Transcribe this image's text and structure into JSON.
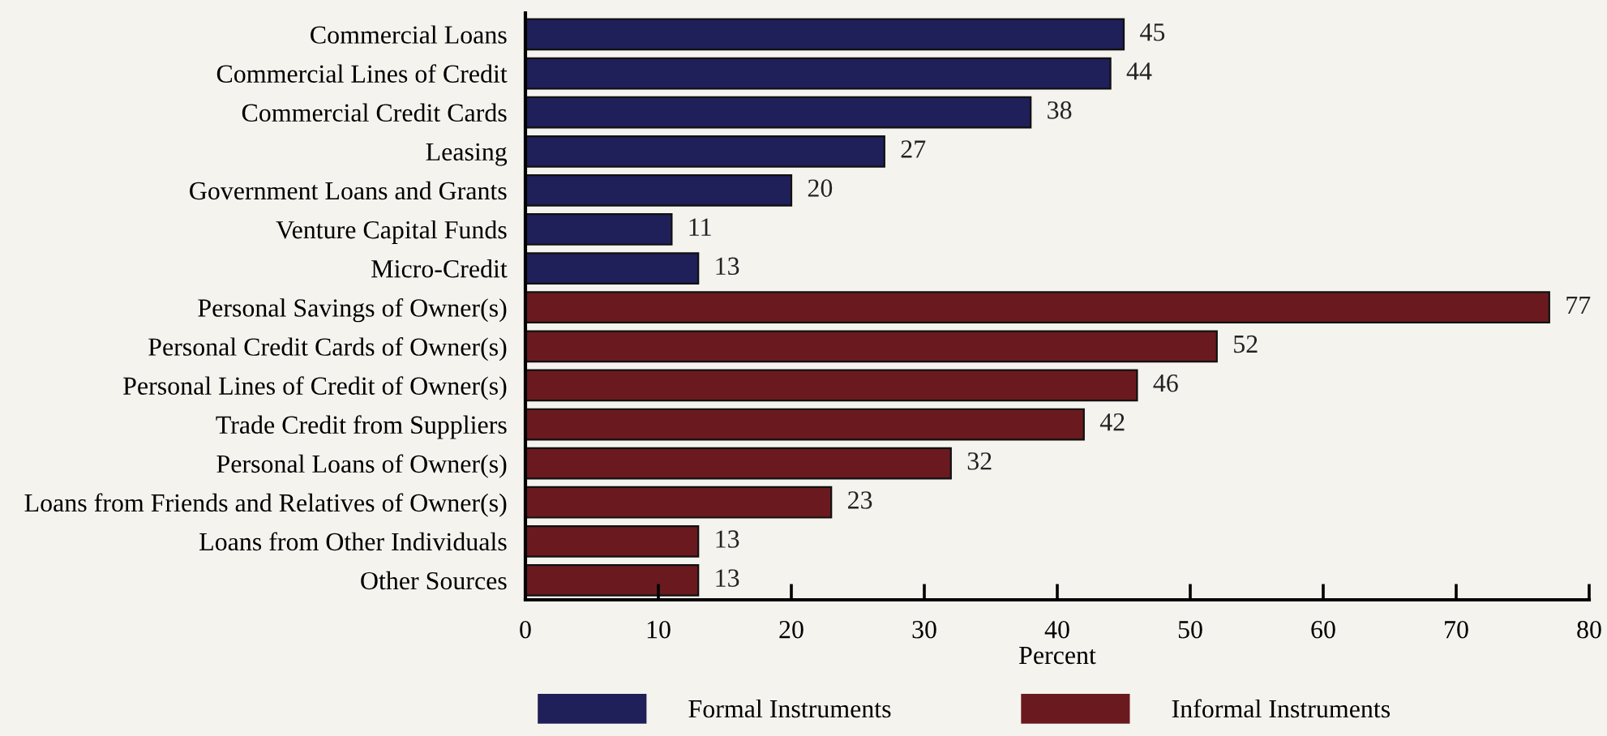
{
  "chart_data": {
    "type": "bar",
    "orientation": "horizontal",
    "xlabel": "Percent",
    "categories": [
      "Commercial Loans",
      "Commercial Lines of Credit",
      "Commercial Credit Cards",
      "Leasing",
      "Government Loans and Grants",
      "Venture Capital Funds",
      "Micro-Credit",
      "Personal Savings of Owner(s)",
      "Personal Credit Cards of Owner(s)",
      "Personal Lines of Credit of Owner(s)",
      "Trade Credit from Suppliers",
      "Personal Loans of Owner(s)",
      "Loans from Friends and Relatives of Owner(s)",
      "Loans from Other Individuals",
      "Other Sources"
    ],
    "series": [
      {
        "name": "Formal Instruments",
        "color": "#1f1f5a",
        "values": [
          45,
          44,
          38,
          27,
          20,
          11,
          13,
          null,
          null,
          null,
          null,
          null,
          null,
          null,
          null
        ]
      },
      {
        "name": "Informal Instruments",
        "color": "#6a1a1f",
        "values": [
          null,
          null,
          null,
          null,
          null,
          null,
          null,
          77,
          52,
          46,
          42,
          32,
          23,
          13,
          13
        ]
      }
    ],
    "xlim": [
      0,
      80
    ],
    "xticks": [
      0,
      10,
      20,
      30,
      40,
      50,
      60,
      70,
      80
    ],
    "data_labels": true,
    "grid": false,
    "legend": "bottom"
  }
}
